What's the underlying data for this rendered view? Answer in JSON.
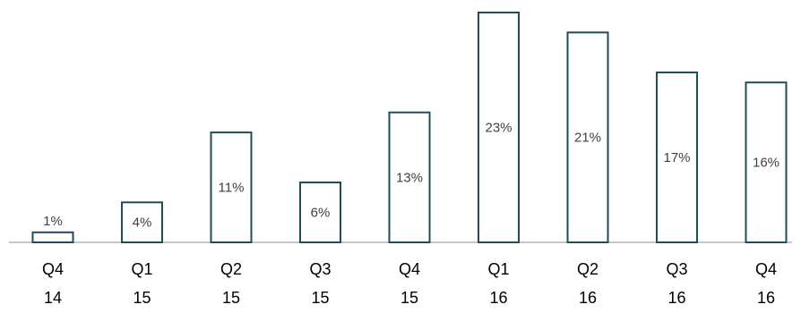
{
  "chart_data": {
    "type": "bar",
    "categories": [
      [
        "Q4",
        "14"
      ],
      [
        "Q1",
        "15"
      ],
      [
        "Q2",
        "15"
      ],
      [
        "Q3",
        "15"
      ],
      [
        "Q4",
        "15"
      ],
      [
        "Q1",
        "16"
      ],
      [
        "Q2",
        "16"
      ],
      [
        "Q3",
        "16"
      ],
      [
        "Q4",
        "16"
      ]
    ],
    "values": [
      1,
      4,
      11,
      6,
      13,
      23,
      21,
      17,
      16
    ],
    "value_labels": [
      "1%",
      "4%",
      "11%",
      "6%",
      "13%",
      "23%",
      "21%",
      "17%",
      "16%"
    ],
    "ylim": [
      0,
      23
    ],
    "grid": false,
    "legend": "none",
    "bar_stroke_color": "#1f4e5a",
    "bar_fill_color": "#ffffff"
  }
}
